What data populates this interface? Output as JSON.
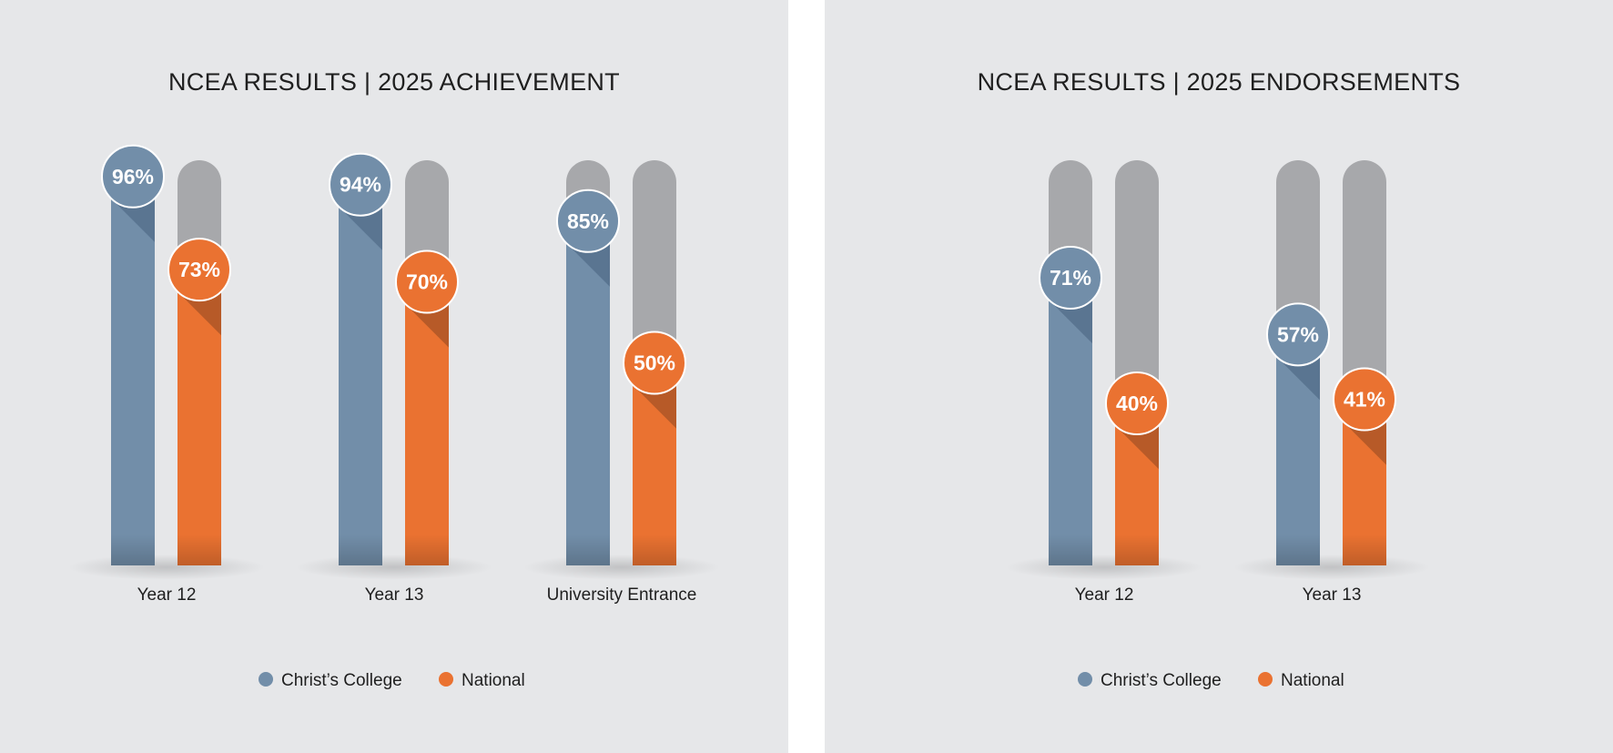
{
  "colors": {
    "christs_college": "#728ea9",
    "christs_college_shadow": "#5a7591",
    "national": "#ea7231",
    "national_shadow": "#b75a28",
    "track": "#a7a8ab",
    "panel_bg": "#e6e7e9"
  },
  "chart_data": [
    {
      "type": "bar",
      "title": "NCEA RESULTS  |  2025 ACHIEVEMENT",
      "categories": [
        "Year 12",
        "Year 13",
        "University Entrance"
      ],
      "series": [
        {
          "name": "Christ’s College",
          "values": [
            96,
            94,
            85
          ],
          "labels": [
            "96%",
            "94%",
            "85%"
          ]
        },
        {
          "name": "National",
          "values": [
            73,
            70,
            50
          ],
          "labels": [
            "73%",
            "70%",
            "50%"
          ]
        }
      ],
      "ylim": [
        0,
        100
      ],
      "grid": false,
      "legend": "bottom-center"
    },
    {
      "type": "bar",
      "title": "NCEA RESULTS  |  2025 ENDORSEMENTS",
      "categories": [
        "Year 12",
        "Year 13"
      ],
      "series": [
        {
          "name": "Christ’s College",
          "values": [
            71,
            57
          ],
          "labels": [
            "71%",
            "57%"
          ]
        },
        {
          "name": "National",
          "values": [
            40,
            41
          ],
          "labels": [
            "40%",
            "41%"
          ]
        }
      ],
      "ylim": [
        0,
        100
      ],
      "grid": false,
      "legend": "bottom-center"
    }
  ]
}
